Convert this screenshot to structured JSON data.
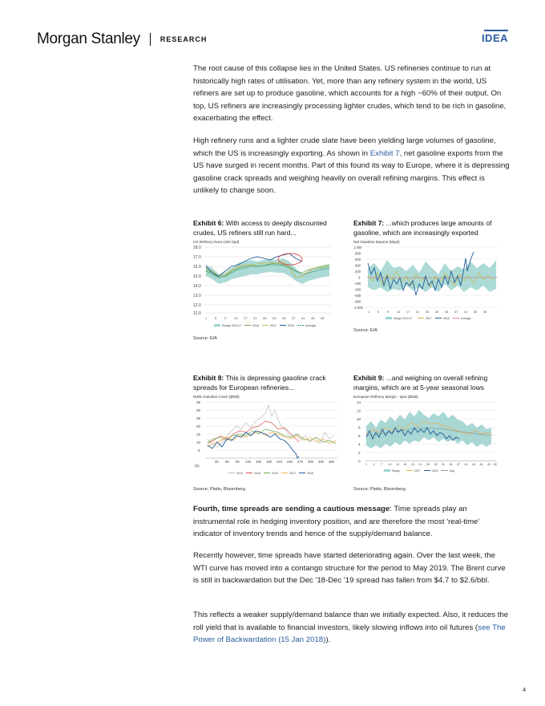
{
  "header": {
    "logo": "Morgan Stanley",
    "section": "RESEARCH",
    "badge": "IDEA"
  },
  "paragraphs": {
    "p1": "The root cause of this collapse lies in the United States. US refineries continue to run at historically high rates of utilisation. Yet, more than any refinery system in the world, US refiners are set up to produce gasoline, which accounts for a high ~60% of their output. On top, US refiners are increasingly processing lighter crudes, which tend to be rich in gasoline, exacerbating the effect.",
    "p2_before": "High refinery runs and a lighter crude slate have been yielding large volumes of gasoline, which the US is increasingly exporting. As shown in ",
    "p2_link": "Exhibit 7",
    "p2_after": ", net gasoline exports from the US have surged in recent months. Part of this found its way to Europe, where it is depressing gasoline crack spreads and weighing heavily on overall refining margins. This effect is unlikely to change soon.",
    "p3_bold": "Fourth, time spreads are sending a cautious message",
    "p3_rest": ": Time spreads play an instrumental role in hedging inventory position, and are therefore the most 'real-time' indicator of inventory trends and hence of the supply/demand balance.",
    "p4": "Recently however, time spreads have started deteriorating again. Over the last week, the WTI curve has moved into a contango structure for the period to May 2019. The Brent curve is still in backwardation but the Dec '18-Dec '19 spread has fallen from $4.7 to $2.6/bbl.",
    "p5_before": "This reflects a weaker supply/demand balance than we initially expected. Also, it reduces the roll yield that is available to financial investors, likely slowing inflows into oil futures (",
    "p5_link": "see The Power of Backwardation (15 Jan 2018)",
    "p5_after": ")."
  },
  "exhibits": {
    "e6": {
      "label": "Exhibit 6:",
      "title": " With access to deeply discounted crudes, US refiners still run hard...",
      "source": "Source: EIA"
    },
    "e7": {
      "label": "Exhibit 7:",
      "title": " ...which produces large amounts of gasoline, which are increasingly exported",
      "source": "Source: EIA"
    },
    "e8": {
      "label": "Exhibit 8:",
      "title": " This is depressing gasoline crack spreads for European refineries...",
      "source": "Source: Platts, Bloomberg"
    },
    "e9": {
      "label": "Exhibit 9:",
      "title": " ...and weighing on overall refining margins, which are at 5-year seasonal lows",
      "source": "Source: Platts, Bloomberg"
    }
  },
  "chart_data": [
    {
      "type": "line",
      "title": "US Refinery Runs (mln bpd)",
      "ylim": [
        12.0,
        18.0
      ],
      "yticks": [
        "18.0",
        "17.0",
        "16.0",
        "15.0",
        "14.0",
        "13.0",
        "12.0"
      ],
      "yticks_full": [
        "18.0",
        "17.0",
        "16.0",
        "15.0",
        "14.0",
        "13.0",
        "12.0"
      ],
      "xticks": [
        "1",
        "5",
        "9",
        "13",
        "17",
        "21",
        "25",
        "29",
        "33",
        "37",
        "41",
        "45",
        "49"
      ],
      "legend": [
        "Range 2013-17",
        "2016",
        "2017",
        "2018",
        "Average"
      ],
      "colors": [
        "#9ed3cf",
        "#6aa84f",
        "#c8b84a",
        "#1f5c99",
        "#2e8b57"
      ],
      "series": [
        {
          "name": "2018",
          "values": [
            16.2,
            15.8,
            15.6,
            16.0,
            16.4,
            16.7,
            17.0,
            17.2,
            17.3,
            17.2,
            17.1,
            17.3,
            17.5,
            17.8,
            17.7,
            17.6,
            17.4,
            17.6,
            17.8,
            17.9,
            17.5,
            17.6,
            17.3,
            17.2
          ]
        },
        {
          "name": "Average",
          "values": [
            15.8,
            15.4,
            15.2,
            15.3,
            15.6,
            15.9,
            16.2,
            16.3,
            16.5,
            16.6,
            16.6,
            16.7,
            16.8,
            16.7,
            16.6,
            16.5,
            16.2,
            16.0,
            15.6,
            15.5,
            15.6,
            15.9,
            16.1,
            16.3,
            16.2,
            16.4
          ]
        }
      ]
    },
    {
      "type": "area",
      "title": "Net Gasoline Exports (kbpd)",
      "ylim": [
        -1000,
        1000
      ],
      "yticks": [
        "1,000",
        "800",
        "600",
        "400",
        "200",
        "0",
        "-200",
        "-400",
        "-600",
        "-800",
        "-1,000"
      ],
      "xticks": [
        "1",
        "5",
        "9",
        "13",
        "17",
        "21",
        "25",
        "29",
        "33",
        "37",
        "41",
        "45",
        "49"
      ],
      "legend": [
        "Range 2013-17",
        "2017",
        "2018",
        "Average"
      ],
      "colors": [
        "#9ed3cf",
        "#c8b84a",
        "#1f5c99",
        "#d9534f"
      ]
    },
    {
      "type": "line",
      "title": "NWE Gasoline Crack ($/bbl)",
      "ylim": [
        -5,
        35
      ],
      "yticks": [
        "35",
        "30",
        "25",
        "20",
        "15",
        "10",
        "5",
        "",
        "(5)"
      ],
      "xticks": [
        "0",
        "30",
        "60",
        "90",
        "120",
        "150",
        "180",
        "210",
        "240",
        "270",
        "300",
        "330",
        "360"
      ],
      "legend": [
        "2013",
        "2015",
        "2016",
        "2017",
        "2018"
      ],
      "colors": [
        "#bdbdbd",
        "#d9534f",
        "#6aa84f",
        "#f0ad4e",
        "#1f5c99"
      ]
    },
    {
      "type": "line",
      "title": "European Refinery Margin - spot ($/bbl)",
      "ylim": [
        0,
        14
      ],
      "yticks": [
        "14",
        "12",
        "10",
        "8",
        "6",
        "4",
        "2",
        "0"
      ],
      "xticks": [
        "1",
        "4",
        "7",
        "10",
        "13",
        "16",
        "19",
        "22",
        "25",
        "28",
        "31",
        "34",
        "37",
        "40",
        "43",
        "46",
        "49",
        "52"
      ],
      "legend": [
        "Range",
        "2017",
        "2018",
        "Avg"
      ],
      "colors": [
        "#9ed3cf",
        "#f0ad4e",
        "#1f5c99",
        "#555555"
      ]
    }
  ],
  "page_number": "4"
}
